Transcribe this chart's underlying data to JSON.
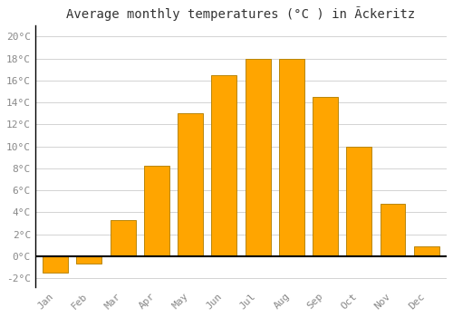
{
  "title": "Average monthly temperatures (°C ) in Ãckeritz",
  "months": [
    "Jan",
    "Feb",
    "Mar",
    "Apr",
    "May",
    "Jun",
    "Jul",
    "Aug",
    "Sep",
    "Oct",
    "Nov",
    "Dec"
  ],
  "temperatures": [
    -1.5,
    -0.7,
    3.3,
    8.2,
    13.0,
    16.5,
    18.0,
    18.0,
    14.5,
    10.0,
    4.8,
    0.9
  ],
  "bar_color": "#FFA500",
  "bar_edge_color": "#B8860B",
  "ylim": [
    -2.8,
    21.0
  ],
  "yticks": [
    -2,
    0,
    2,
    4,
    6,
    8,
    10,
    12,
    14,
    16,
    18,
    20
  ],
  "background_color": "#ffffff",
  "grid_color": "#cccccc",
  "title_fontsize": 10,
  "tick_fontsize": 8,
  "tick_color": "#888888",
  "font_family": "monospace"
}
